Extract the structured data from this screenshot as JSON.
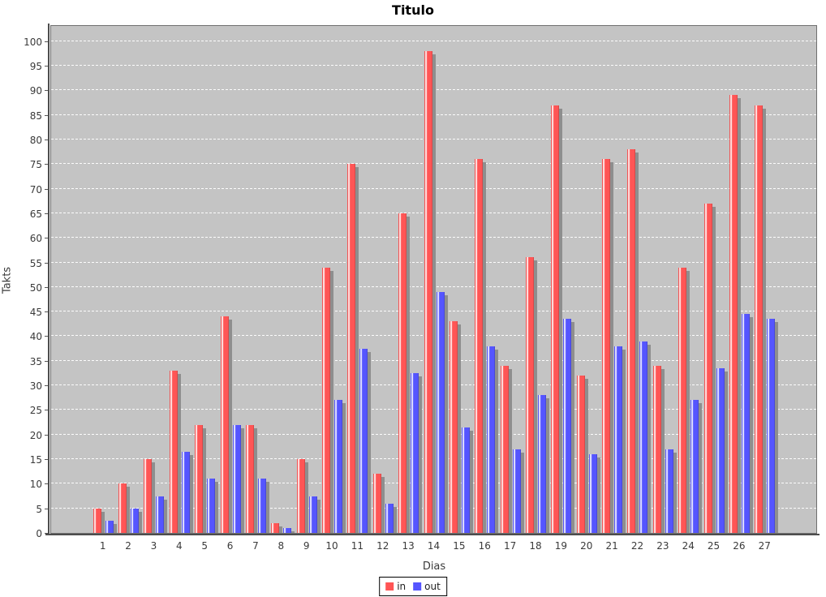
{
  "title": "Titulo",
  "axes": {
    "y_label": "Takts",
    "x_label": "Dias",
    "y_ticks": [
      0,
      5,
      10,
      15,
      20,
      25,
      30,
      35,
      40,
      45,
      50,
      55,
      60,
      65,
      70,
      75,
      80,
      85,
      90,
      95,
      100
    ]
  },
  "legend": {
    "items": [
      {
        "label": "in",
        "color": "#ff5555"
      },
      {
        "label": "out",
        "color": "#5555ff"
      }
    ]
  },
  "colors": {
    "plot_background": "#c4c4c4",
    "gridline": "#ffffff",
    "series_in": "#ff5555",
    "series_out": "#5555ff",
    "bar_shadow": "#8e8e8e",
    "axis_text": "#3a3a3a",
    "title_text": "#000000"
  },
  "chart_data": {
    "type": "bar",
    "title": "Titulo",
    "xlabel": "Dias",
    "ylabel": "Takts",
    "categories": [
      "1",
      "2",
      "3",
      "4",
      "5",
      "6",
      "7",
      "8",
      "9",
      "10",
      "11",
      "12",
      "13",
      "14",
      "15",
      "16",
      "17",
      "18",
      "19",
      "20",
      "21",
      "22",
      "23",
      "24",
      "25",
      "26",
      "27"
    ],
    "series": [
      {
        "name": "in",
        "color": "#ff5555",
        "values": [
          5,
          10,
          15,
          33,
          22,
          44,
          22,
          2,
          15,
          54,
          75,
          12,
          65,
          98,
          43,
          76,
          34,
          56,
          87,
          32,
          76,
          78,
          34,
          54,
          67,
          89,
          87
        ]
      },
      {
        "name": "out",
        "color": "#5555ff",
        "values": [
          2.5,
          5,
          7.5,
          16.5,
          11,
          22,
          11,
          1,
          7.5,
          27,
          37.5,
          6,
          32.5,
          49,
          21.5,
          38,
          17,
          28,
          43.5,
          16,
          38,
          39,
          17,
          27,
          33.5,
          44.5,
          43.5
        ]
      }
    ],
    "ylim": [
      0,
      100
    ],
    "grid": true,
    "grid_style": "horizontal-dashed-white",
    "legend_position": "bottom-center"
  }
}
